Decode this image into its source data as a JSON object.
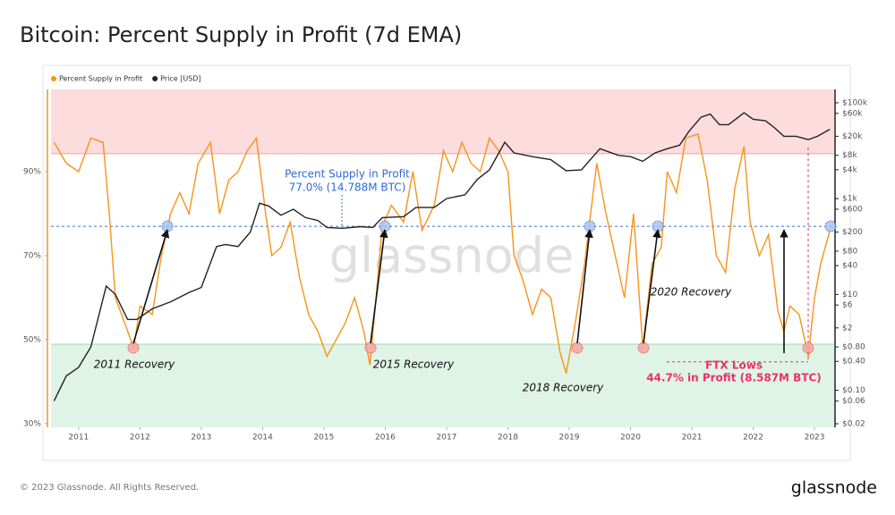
{
  "chart_data": {
    "type": "line",
    "title": "Bitcoin: Percent Supply in Profit (7d EMA)",
    "watermark": "glassnode",
    "copyright": "© 2023 Glassnode. All Rights Reserved.",
    "brand": "glassnode",
    "xlim": [
      2010.55,
      2023.32
    ],
    "xticks": [
      2011,
      2012,
      2013,
      2014,
      2015,
      2016,
      2017,
      2018,
      2019,
      2020,
      2021,
      2022,
      2023
    ],
    "ylim": [
      29.1,
      109.6
    ],
    "yticks": [
      {
        "value": 30,
        "label": "30%"
      },
      {
        "value": 50,
        "label": "50%"
      },
      {
        "value": 70,
        "label": "70%"
      },
      {
        "value": 90,
        "label": "90%"
      }
    ],
    "y2lim": [
      0.0168,
      190000
    ],
    "y2scale": "log",
    "y2ticks": [
      {
        "value": 100000,
        "label": "$100k"
      },
      {
        "value": 60000,
        "label": "$60k"
      },
      {
        "value": 20000,
        "label": "$20k"
      },
      {
        "value": 8000,
        "label": "$8k"
      },
      {
        "value": 4000,
        "label": "$4k"
      },
      {
        "value": 1000,
        "label": "$1k"
      },
      {
        "value": 600,
        "label": "$600"
      },
      {
        "value": 200,
        "label": "$200"
      },
      {
        "value": 80,
        "label": "$80"
      },
      {
        "value": 40,
        "label": "$40"
      },
      {
        "value": 10,
        "label": "$10"
      },
      {
        "value": 6,
        "label": "$6"
      },
      {
        "value": 2,
        "label": "$2"
      },
      {
        "value": 0.8,
        "label": "$0.80"
      },
      {
        "value": 0.4,
        "label": "$0.40"
      },
      {
        "value": 0.1,
        "label": "$0.10"
      },
      {
        "value": 0.06,
        "label": "$0.06"
      },
      {
        "value": 0.02,
        "label": "$0.02"
      }
    ],
    "upper_band": 94.3,
    "upper_band_color": "#fbd3d3",
    "lower_band": 48.9,
    "lower_band_color": "#dff3e6",
    "reference": 77,
    "callout": {
      "title": "Percent Supply in Profit",
      "value": "77.0% (14.788M BTC)"
    },
    "ftx": {
      "title": "FTX Lows",
      "value": "44.7% in Profit (8.587M BTC)",
      "level": 44.7
    },
    "recoveries": [
      "2011 Recovery",
      "2015 Recovery",
      "2018 Recovery",
      "2020 Recovery"
    ],
    "series": [
      {
        "name": "Percent Supply in Profit",
        "color": "#f7931a",
        "x": [
          2010.6,
          2010.8,
          2011.0,
          2011.2,
          2011.4,
          2011.5,
          2011.6,
          2011.8,
          2011.9,
          2012.0,
          2012.2,
          2012.35,
          2012.5,
          2012.65,
          2012.8,
          2012.95,
          2013.15,
          2013.3,
          2013.45,
          2013.6,
          2013.75,
          2013.9,
          2014.05,
          2014.15,
          2014.3,
          2014.45,
          2014.6,
          2014.75,
          2014.9,
          2015.05,
          2015.2,
          2015.35,
          2015.5,
          2015.65,
          2015.75,
          2015.85,
          2015.95,
          2016.1,
          2016.3,
          2016.45,
          2016.6,
          2016.8,
          2016.95,
          2017.1,
          2017.25,
          2017.4,
          2017.55,
          2017.7,
          2017.85,
          2018.0,
          2018.1,
          2018.25,
          2018.4,
          2018.55,
          2018.7,
          2018.85,
          2018.95,
          2019.1,
          2019.25,
          2019.45,
          2019.6,
          2019.75,
          2019.9,
          2020.05,
          2020.2,
          2020.35,
          2020.5,
          2020.6,
          2020.75,
          2020.9,
          2021.1,
          2021.25,
          2021.4,
          2021.55,
          2021.7,
          2021.85,
          2021.95,
          2022.1,
          2022.25,
          2022.4,
          2022.5,
          2022.6,
          2022.75,
          2022.9,
          2023.0,
          2023.1,
          2023.25
        ],
        "values": [
          97,
          92,
          90,
          98,
          97,
          80,
          60,
          52,
          48,
          58,
          56,
          70,
          80,
          85,
          80,
          92,
          97,
          80,
          88,
          90,
          95,
          98,
          80,
          70,
          72,
          78,
          65,
          56,
          52,
          46,
          50,
          54,
          60,
          52,
          44,
          60,
          77,
          82,
          78,
          90,
          76,
          82,
          95,
          90,
          97,
          92,
          90,
          98,
          95,
          90,
          70,
          64,
          56,
          62,
          60,
          47,
          42,
          54,
          68,
          92,
          80,
          70,
          60,
          80,
          48,
          68,
          72,
          90,
          85,
          98,
          99,
          88,
          70,
          66,
          86,
          96,
          78,
          70,
          75,
          57,
          52,
          58,
          56,
          46,
          60,
          68,
          76
        ]
      },
      {
        "name": "Price [USD]",
        "color": "#222222",
        "axis": "y2",
        "x": [
          2010.6,
          2010.8,
          2011.0,
          2011.2,
          2011.45,
          2011.6,
          2011.8,
          2011.95,
          2012.2,
          2012.5,
          2012.8,
          2013.0,
          2013.25,
          2013.4,
          2013.6,
          2013.8,
          2013.95,
          2014.1,
          2014.3,
          2014.5,
          2014.7,
          2014.9,
          2015.05,
          2015.3,
          2015.6,
          2015.8,
          2015.95,
          2016.3,
          2016.5,
          2016.8,
          2017.0,
          2017.3,
          2017.5,
          2017.7,
          2017.95,
          2018.1,
          2018.4,
          2018.7,
          2018.95,
          2019.2,
          2019.5,
          2019.8,
          2020.0,
          2020.2,
          2020.4,
          2020.6,
          2020.8,
          2020.95,
          2021.15,
          2021.3,
          2021.45,
          2021.6,
          2021.85,
          2022.0,
          2022.2,
          2022.35,
          2022.5,
          2022.7,
          2022.9,
          2023.05,
          2023.25
        ],
        "values": [
          0.06,
          0.2,
          0.3,
          0.8,
          15,
          10,
          3,
          3,
          5,
          7,
          11,
          14,
          100,
          110,
          100,
          200,
          800,
          700,
          450,
          600,
          400,
          350,
          250,
          240,
          260,
          250,
          400,
          420,
          650,
          650,
          1000,
          1200,
          2500,
          4000,
          15000,
          9000,
          7500,
          6500,
          3800,
          4000,
          11000,
          8000,
          7500,
          6000,
          9000,
          11000,
          13000,
          25000,
          50000,
          58000,
          35000,
          35000,
          62000,
          45000,
          42000,
          30000,
          20000,
          20000,
          17000,
          20000,
          28000
        ]
      }
    ]
  }
}
